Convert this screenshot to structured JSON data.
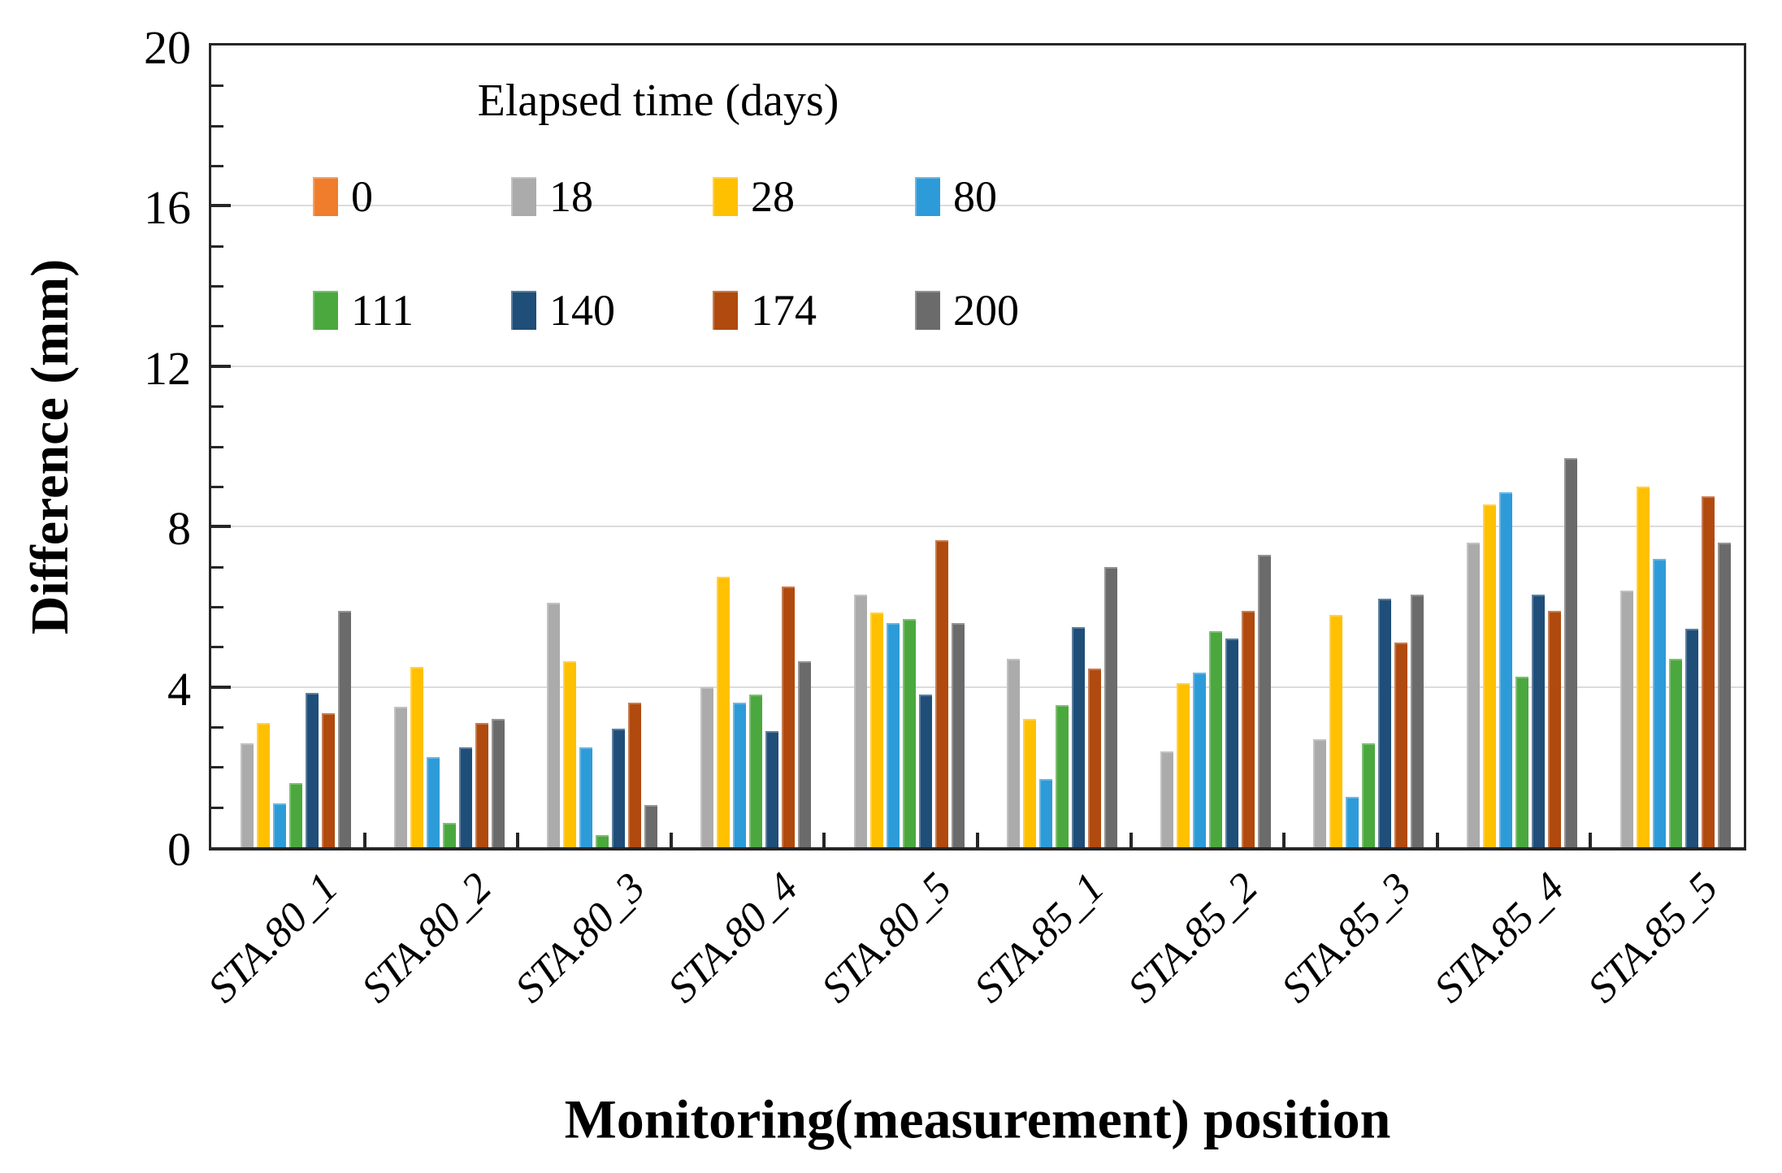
{
  "chart_data": {
    "type": "bar",
    "xlabel": "Monitoring(measurement) position",
    "ylabel": "Difference (mm)",
    "legend_title": "Elapsed time (days)",
    "legend_position": "inside-top-left, two rows of four",
    "ylim": [
      0,
      20
    ],
    "yticks": [
      0,
      4,
      8,
      12,
      16,
      20
    ],
    "minor_tick_step": 1,
    "grid": "horizontal major gridlines",
    "categories": [
      "STA.80_1",
      "STA.80_2",
      "STA.80_3",
      "STA.80_4",
      "STA.80_5",
      "STA.85_1",
      "STA.85_2",
      "STA.85_3",
      "STA.85_4",
      "STA.85_5"
    ],
    "series": [
      {
        "name": "0",
        "color": "#F07D2B",
        "values": [
          0,
          0,
          0,
          0,
          0,
          0,
          0,
          0,
          0,
          0
        ]
      },
      {
        "name": "18",
        "color": "#ABABAB",
        "values": [
          2.6,
          3.5,
          6.1,
          4.0,
          6.3,
          4.7,
          2.4,
          2.7,
          7.6,
          6.4
        ]
      },
      {
        "name": "28",
        "color": "#FFC000",
        "values": [
          3.1,
          4.5,
          4.65,
          6.75,
          5.85,
          3.2,
          4.1,
          5.8,
          8.55,
          9.0
        ]
      },
      {
        "name": "80",
        "color": "#2E9BD9",
        "values": [
          1.1,
          2.25,
          2.5,
          3.6,
          5.6,
          1.7,
          4.35,
          1.25,
          8.85,
          7.2
        ]
      },
      {
        "name": "111",
        "color": "#4BA83E",
        "values": [
          1.6,
          0.6,
          0.3,
          3.8,
          5.7,
          3.55,
          5.4,
          2.6,
          4.25,
          4.7
        ]
      },
      {
        "name": "140",
        "color": "#1F4E79",
        "values": [
          3.85,
          2.5,
          2.95,
          2.9,
          3.8,
          5.5,
          5.2,
          6.2,
          6.3,
          5.45
        ]
      },
      {
        "name": "174",
        "color": "#B04A0E",
        "values": [
          3.35,
          3.1,
          3.6,
          6.5,
          7.65,
          4.45,
          5.9,
          5.1,
          5.9,
          8.75
        ]
      },
      {
        "name": "200",
        "color": "#6B6B6B",
        "values": [
          5.9,
          3.2,
          1.05,
          4.65,
          5.6,
          7.0,
          7.3,
          6.3,
          9.7,
          7.6
        ]
      }
    ],
    "colors": {
      "axis": "#262626",
      "gridline": "#DCDCDC",
      "text": "#000000",
      "background": "#FFFFFF"
    }
  }
}
